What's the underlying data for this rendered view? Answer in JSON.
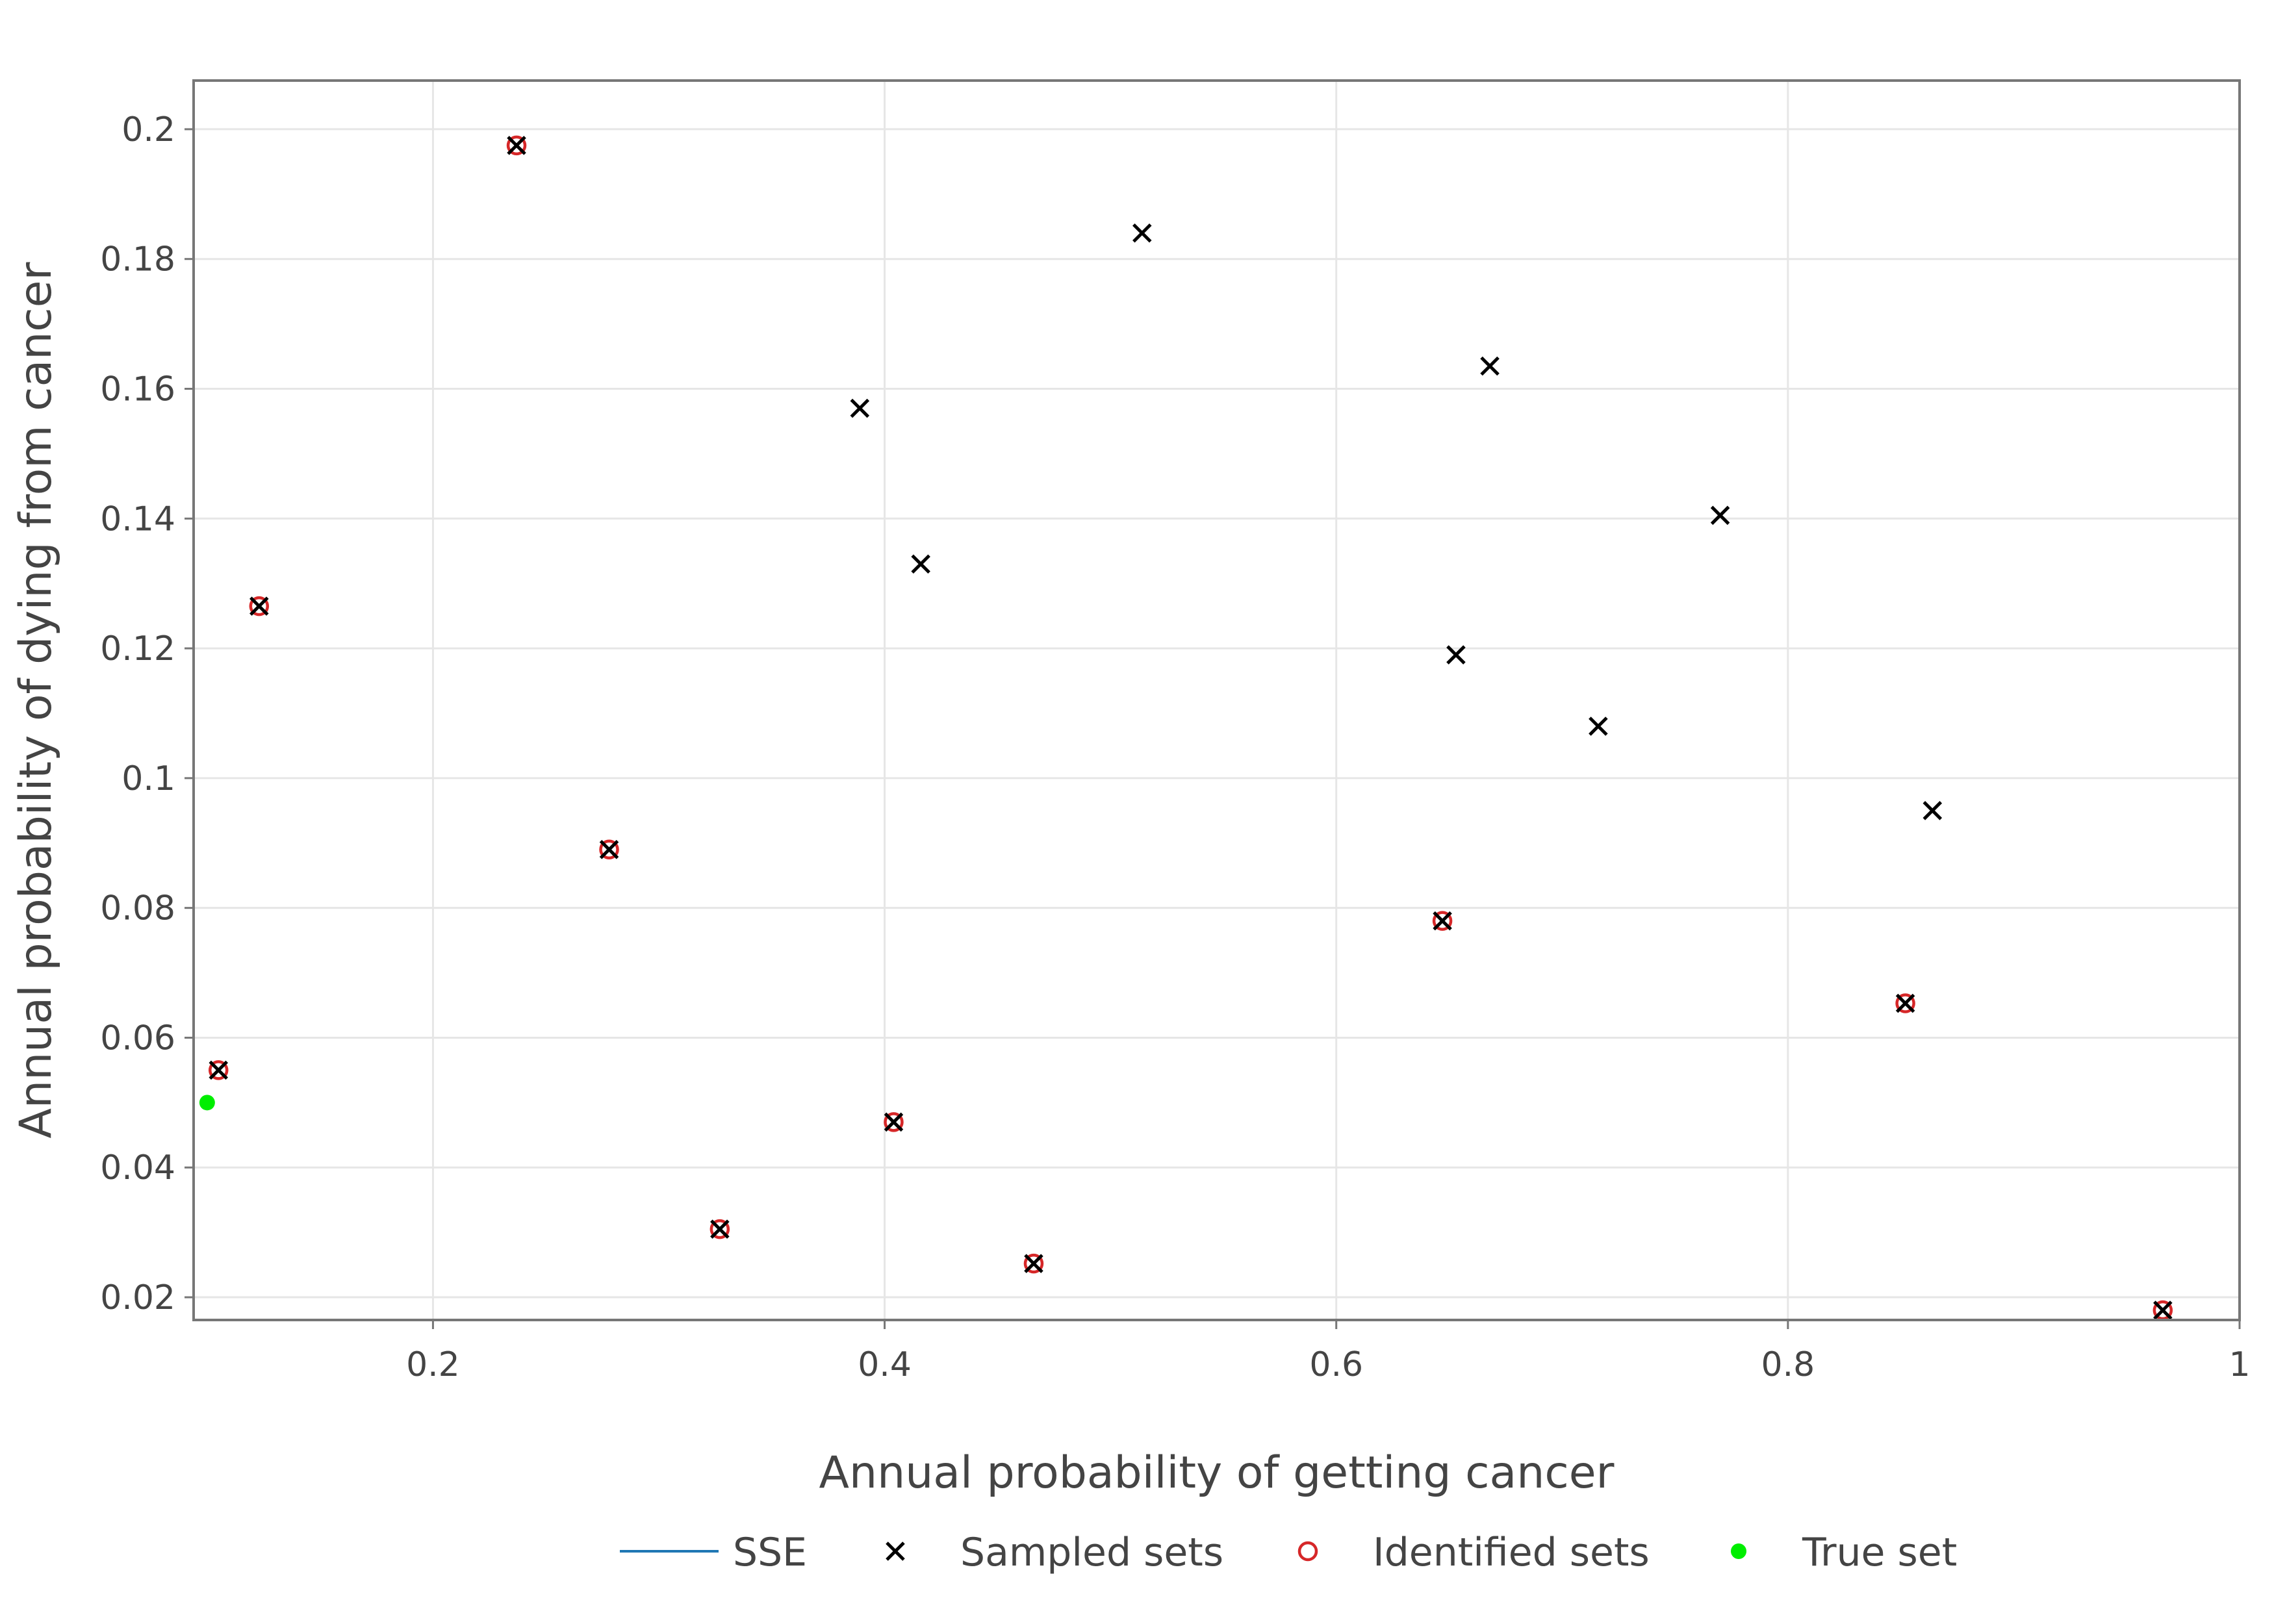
{
  "chart_data": {
    "type": "scatter",
    "xlabel": "Annual probability of getting cancer",
    "ylabel": "Annual probability of dying from cancer",
    "xlim": [
      0.094,
      1.0
    ],
    "ylim": [
      0.0165,
      0.2075
    ],
    "x_ticks": [
      {
        "value": 0.2,
        "label": "0.2"
      },
      {
        "value": 0.4,
        "label": "0.4"
      },
      {
        "value": 0.6,
        "label": "0.6"
      },
      {
        "value": 0.8,
        "label": "0.8"
      },
      {
        "value": 1.0,
        "label": "1"
      }
    ],
    "y_ticks": [
      {
        "value": 0.02,
        "label": "0.02"
      },
      {
        "value": 0.04,
        "label": "0.04"
      },
      {
        "value": 0.06,
        "label": "0.06"
      },
      {
        "value": 0.08,
        "label": "0.08"
      },
      {
        "value": 0.1,
        "label": "0.1"
      },
      {
        "value": 0.12,
        "label": "0.12"
      },
      {
        "value": 0.14,
        "label": "0.14"
      },
      {
        "value": 0.16,
        "label": "0.16"
      },
      {
        "value": 0.18,
        "label": "0.18"
      },
      {
        "value": 0.2,
        "label": "0.2"
      }
    ],
    "grid": true,
    "legend_position": "bottom",
    "series": [
      {
        "name": "SSE",
        "marker": "line",
        "color": "#1f77b4",
        "points": []
      },
      {
        "name": "Sampled sets",
        "marker": "x",
        "color": "#000000",
        "points": [
          {
            "x": 0.237,
            "y": 0.1975
          },
          {
            "x": 0.123,
            "y": 0.1265
          },
          {
            "x": 0.278,
            "y": 0.089
          },
          {
            "x": 0.105,
            "y": 0.055
          },
          {
            "x": 0.327,
            "y": 0.0305
          },
          {
            "x": 0.404,
            "y": 0.047
          },
          {
            "x": 0.466,
            "y": 0.0252
          },
          {
            "x": 0.389,
            "y": 0.157
          },
          {
            "x": 0.416,
            "y": 0.133
          },
          {
            "x": 0.514,
            "y": 0.184
          },
          {
            "x": 0.647,
            "y": 0.078
          },
          {
            "x": 0.653,
            "y": 0.119
          },
          {
            "x": 0.668,
            "y": 0.1635
          },
          {
            "x": 0.716,
            "y": 0.108
          },
          {
            "x": 0.77,
            "y": 0.1405
          },
          {
            "x": 0.852,
            "y": 0.0653
          },
          {
            "x": 0.864,
            "y": 0.095
          },
          {
            "x": 0.966,
            "y": 0.018
          }
        ]
      },
      {
        "name": "Identified sets",
        "marker": "circle-open",
        "color": "#d62728",
        "points": [
          {
            "x": 0.237,
            "y": 0.1975
          },
          {
            "x": 0.123,
            "y": 0.1265
          },
          {
            "x": 0.278,
            "y": 0.089
          },
          {
            "x": 0.105,
            "y": 0.055
          },
          {
            "x": 0.327,
            "y": 0.0305
          },
          {
            "x": 0.404,
            "y": 0.047
          },
          {
            "x": 0.466,
            "y": 0.0252
          },
          {
            "x": 0.647,
            "y": 0.078
          },
          {
            "x": 0.852,
            "y": 0.0653
          },
          {
            "x": 0.966,
            "y": 0.018
          }
        ]
      },
      {
        "name": "True set",
        "marker": "circle-filled",
        "color": "#00ee00",
        "points": [
          {
            "x": 0.1,
            "y": 0.05
          }
        ]
      }
    ]
  }
}
